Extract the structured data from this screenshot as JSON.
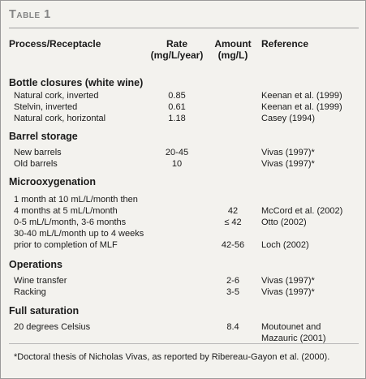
{
  "title": "Table 1",
  "columns": {
    "process": "Process/Receptacle",
    "rate_line1": "Rate",
    "rate_line2": "(mg/L/year)",
    "amount_line1": "Amount",
    "amount_line2": "(mg/L)",
    "reference": "Reference"
  },
  "sections": [
    {
      "name": "Bottle closures (white wine)",
      "rows": [
        {
          "process": [
            "Natural cork, inverted"
          ],
          "rate": "0.85",
          "amount": "",
          "reference": [
            "Keenan et al. (1999)"
          ]
        },
        {
          "process": [
            "Stelvin, inverted"
          ],
          "rate": "0.61",
          "amount": "",
          "reference": [
            "Keenan et al. (1999)"
          ]
        },
        {
          "process": [
            "Natural cork, horizontal"
          ],
          "rate": "1.18",
          "amount": "",
          "reference": [
            "Casey (1994)"
          ]
        }
      ]
    },
    {
      "name": "Barrel storage",
      "rows": [
        {
          "process": [
            "New barrels"
          ],
          "rate": "20-45",
          "amount": "",
          "reference": [
            "Vivas (1997)*"
          ]
        },
        {
          "process": [
            "Old barrels"
          ],
          "rate": "10",
          "amount": "",
          "reference": [
            "Vivas (1997)*"
          ]
        }
      ]
    },
    {
      "name": "Microoxygenation",
      "rows": [
        {
          "process": [
            "1 month at 10 mL/L/month then",
            "4 months at 5 mL/L/month"
          ],
          "rate": "",
          "amount": "42",
          "reference": [
            "McCord et al. (2002)"
          ]
        },
        {
          "process": [
            "0-5 mL/L/month, 3-6 months"
          ],
          "rate": "",
          "amount": "≤ 42",
          "reference": [
            "Otto (2002)"
          ]
        },
        {
          "process": [
            "30-40 mL/L/month up to 4 weeks",
            "prior to completion of MLF"
          ],
          "rate": "",
          "amount": "42-56",
          "reference": [
            "Loch (2002)"
          ]
        }
      ]
    },
    {
      "name": "Operations",
      "rows": [
        {
          "process": [
            "Wine transfer"
          ],
          "rate": "",
          "amount": "2-6",
          "reference": [
            "Vivas (1997)*"
          ]
        },
        {
          "process": [
            "Racking"
          ],
          "rate": "",
          "amount": "3-5",
          "reference": [
            "Vivas (1997)*"
          ]
        }
      ]
    },
    {
      "name": "Full saturation",
      "rows": [
        {
          "process": [
            "20 degrees Celsius"
          ],
          "rate": "",
          "amount": "8.4",
          "reference": [
            "Moutounet and",
            "Mazauric (2001)"
          ]
        }
      ]
    }
  ],
  "footnote": "*Doctoral thesis of Nicholas Vivas, as reported by Ribereau-Gayon et al. (2000)."
}
